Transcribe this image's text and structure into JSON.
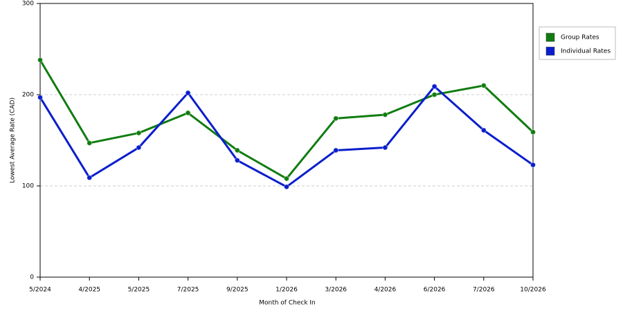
{
  "chart_data": {
    "type": "line",
    "categories": [
      "5/2024",
      "4/2025",
      "5/2025",
      "7/2025",
      "9/2025",
      "1/2026",
      "3/2026",
      "4/2026",
      "6/2026",
      "7/2026",
      "10/2026"
    ],
    "series": [
      {
        "name": "Group Rates",
        "color": "#107c10",
        "values": [
          238,
          147,
          158,
          180,
          139,
          108,
          174,
          178,
          200,
          210,
          159
        ]
      },
      {
        "name": "Individual Rates",
        "color": "#0a1ecc",
        "values": [
          197,
          109,
          142,
          202,
          128,
          99,
          139,
          142,
          209,
          161,
          123
        ]
      }
    ],
    "x_label": "Month of Check In",
    "y_label": "Lowest Average Rate (CAD)",
    "ylim": [
      0,
      300
    ],
    "yticks": [
      0,
      100,
      200,
      300
    ],
    "grid": true,
    "legend": "right"
  }
}
